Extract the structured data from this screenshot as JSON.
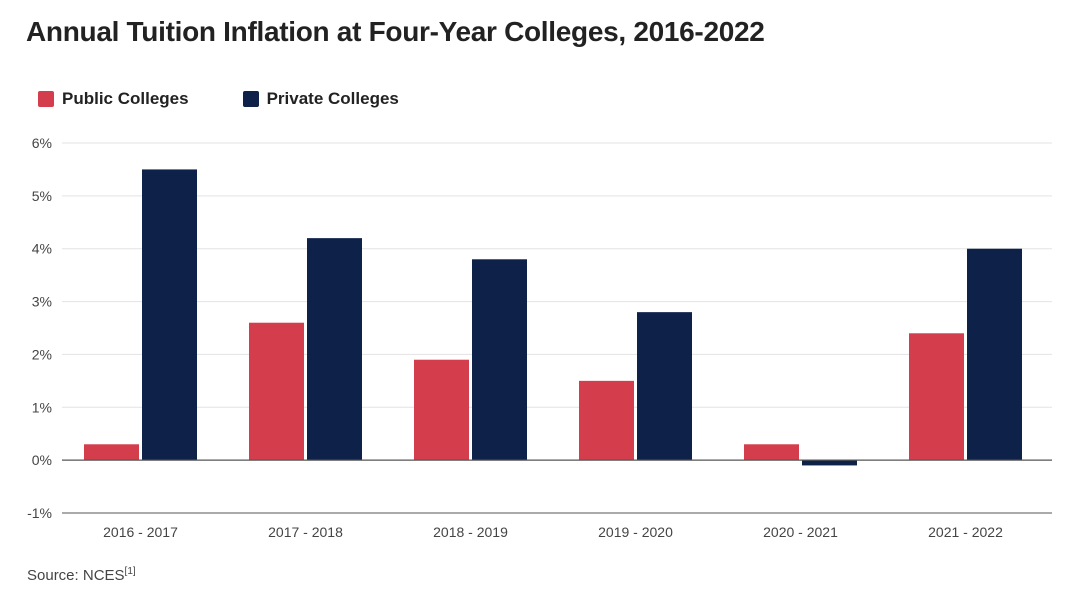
{
  "title": "Annual Tuition Inflation at Four-Year Colleges, 2016-2022",
  "source": {
    "label": "Source: NCES",
    "ref": "[1]"
  },
  "legend": [
    {
      "name": "Public Colleges",
      "color": "#d43d4b"
    },
    {
      "name": "Private Colleges",
      "color": "#0d2149"
    }
  ],
  "chart_data": {
    "type": "bar",
    "title": "Annual Tuition Inflation at Four-Year Colleges, 2016-2022",
    "xlabel": "",
    "ylabel": "",
    "categories": [
      "2016 - 2017",
      "2017 - 2018",
      "2018 - 2019",
      "2019 - 2020",
      "2020 - 2021",
      "2021 - 2022"
    ],
    "series": [
      {
        "name": "Public Colleges",
        "color": "#d43d4b",
        "values": [
          0.3,
          2.6,
          1.9,
          1.5,
          0.3,
          2.4
        ]
      },
      {
        "name": "Private Colleges",
        "color": "#0d2149",
        "values": [
          5.5,
          4.2,
          3.8,
          2.8,
          -0.1,
          4.0
        ]
      }
    ],
    "ylim": [
      -1,
      6
    ],
    "yticks": [
      -1,
      0,
      1,
      2,
      3,
      4,
      5,
      6
    ],
    "ytick_labels": [
      "-1%",
      "0%",
      "1%",
      "2%",
      "3%",
      "4%",
      "5%",
      "6%"
    ],
    "grid": true,
    "legend_position": "top-left"
  }
}
